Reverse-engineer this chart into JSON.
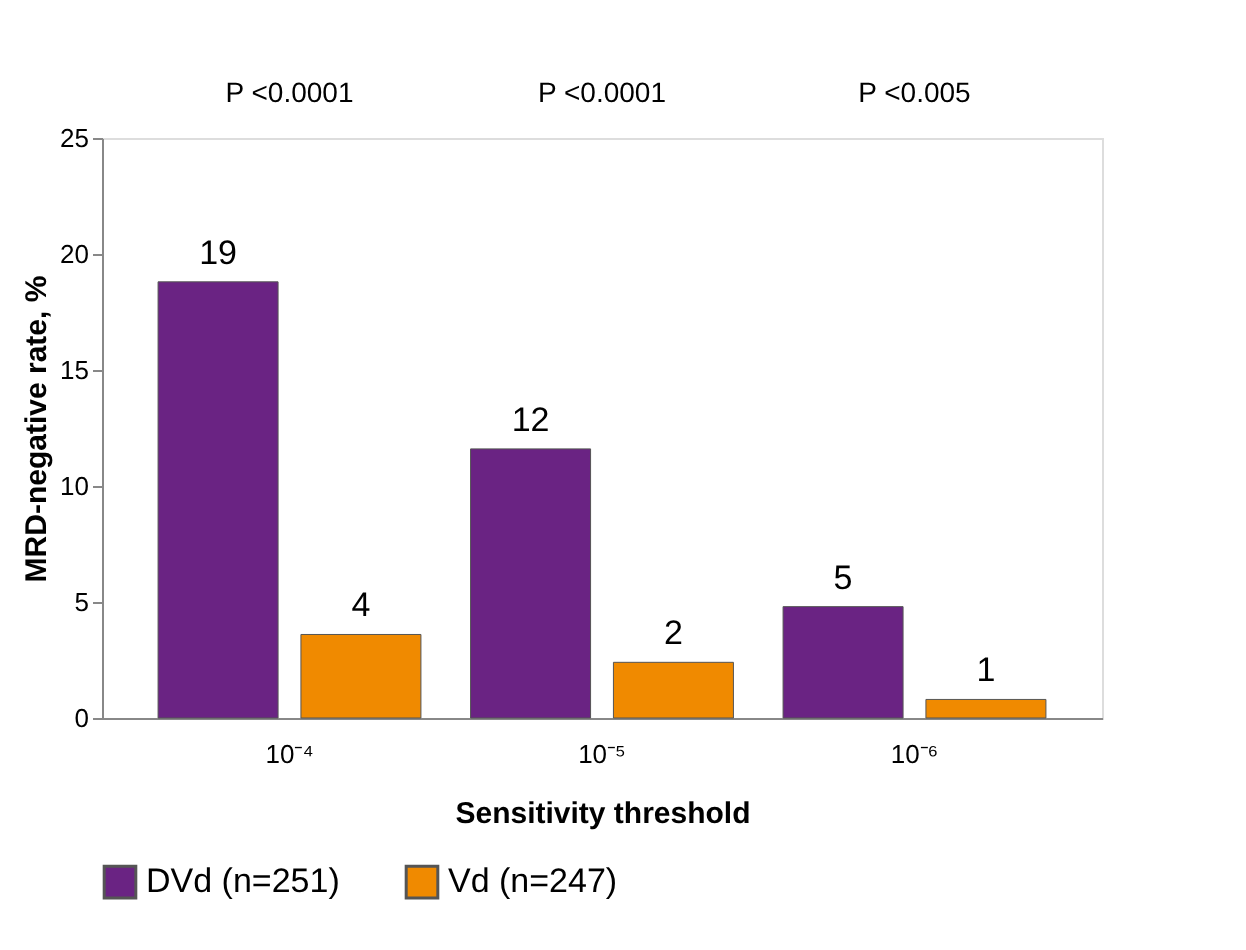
{
  "chart_data": {
    "type": "bar",
    "xlabel": "Sensitivity threshold",
    "ylabel": "MRD-negative rate, %",
    "categories": [
      "10⁻⁴",
      "10⁻⁵",
      "10⁻⁶"
    ],
    "series": [
      {
        "name": "DVd (n=251)",
        "color": "#6a2383",
        "values": [
          18.8,
          11.6,
          4.8
        ],
        "value_labels": [
          "19",
          "12",
          "5"
        ]
      },
      {
        "name": "Vd (n=247)",
        "color": "#f08a00",
        "values": [
          3.6,
          2.4,
          0.8
        ],
        "value_labels": [
          "4",
          "2",
          "1"
        ]
      }
    ],
    "ylim": [
      0,
      25
    ],
    "yticks": [
      0,
      5,
      10,
      15,
      20,
      25
    ],
    "grid": false,
    "legend": "bottom",
    "annotations": [
      "P <0.0001",
      "P <0.0001",
      "P <0.005"
    ]
  }
}
